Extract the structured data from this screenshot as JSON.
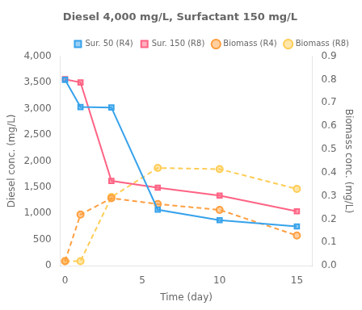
{
  "chart_data": {
    "type": "line",
    "title": "Diesel 4,000 mg/L, Surfactant 150 mg/L",
    "xlabel": "Time (day)",
    "ylabel": "Diesel conc. (mg/L)",
    "y2label": "Biomass conc. (mg/L)",
    "x": [
      0,
      1,
      3,
      6,
      10,
      15
    ],
    "series": [
      {
        "name": "Sur. 50 (R4)",
        "values": [
          3550,
          3030,
          3020,
          1070,
          870,
          750
        ],
        "marker": "square",
        "line_style": "solid"
      },
      {
        "name": "Sur. 150 (R8)",
        "values": [
          3560,
          3500,
          1620,
          1490,
          1340,
          1040
        ],
        "marker": "square",
        "line_style": "solid"
      },
      {
        "name": "Biomass (R4)",
        "values": [
          0.02,
          0.22,
          0.29,
          0.265,
          0.24,
          0.13
        ],
        "marker": "circle",
        "line_style": "dashed",
        "axis": "y2"
      },
      {
        "name": "Biomass (R8)",
        "values": [
          0.02,
          0.02,
          0.295,
          0.42,
          0.415,
          0.33
        ],
        "marker": "circle",
        "line_style": "dashed",
        "axis": "y2"
      }
    ],
    "xlim": [
      -0.3,
      16
    ],
    "xticks": [
      0,
      5,
      10,
      15
    ],
    "ylim": [
      0,
      4000
    ],
    "yticks": [
      0,
      500,
      {
        "value": 1000,
        "label": "1,000"
      },
      {
        "value": 1500,
        "label": "1,500"
      },
      {
        "value": 2000,
        "label": "2,000"
      },
      {
        "value": 2500,
        "label": "2,500"
      },
      {
        "value": 3000,
        "label": "3,000"
      },
      {
        "value": 3500,
        "label": "3,500"
      },
      {
        "value": 4000,
        "label": "4,000"
      }
    ],
    "y2lim": [
      0,
      0.9
    ],
    "y2ticks": [
      {
        "value": 0,
        "label": "0.0"
      },
      0.1,
      0.2,
      0.3,
      0.4,
      0.5,
      0.6,
      0.7,
      0.8,
      0.9
    ],
    "grid": false,
    "legend": "upper right"
  }
}
